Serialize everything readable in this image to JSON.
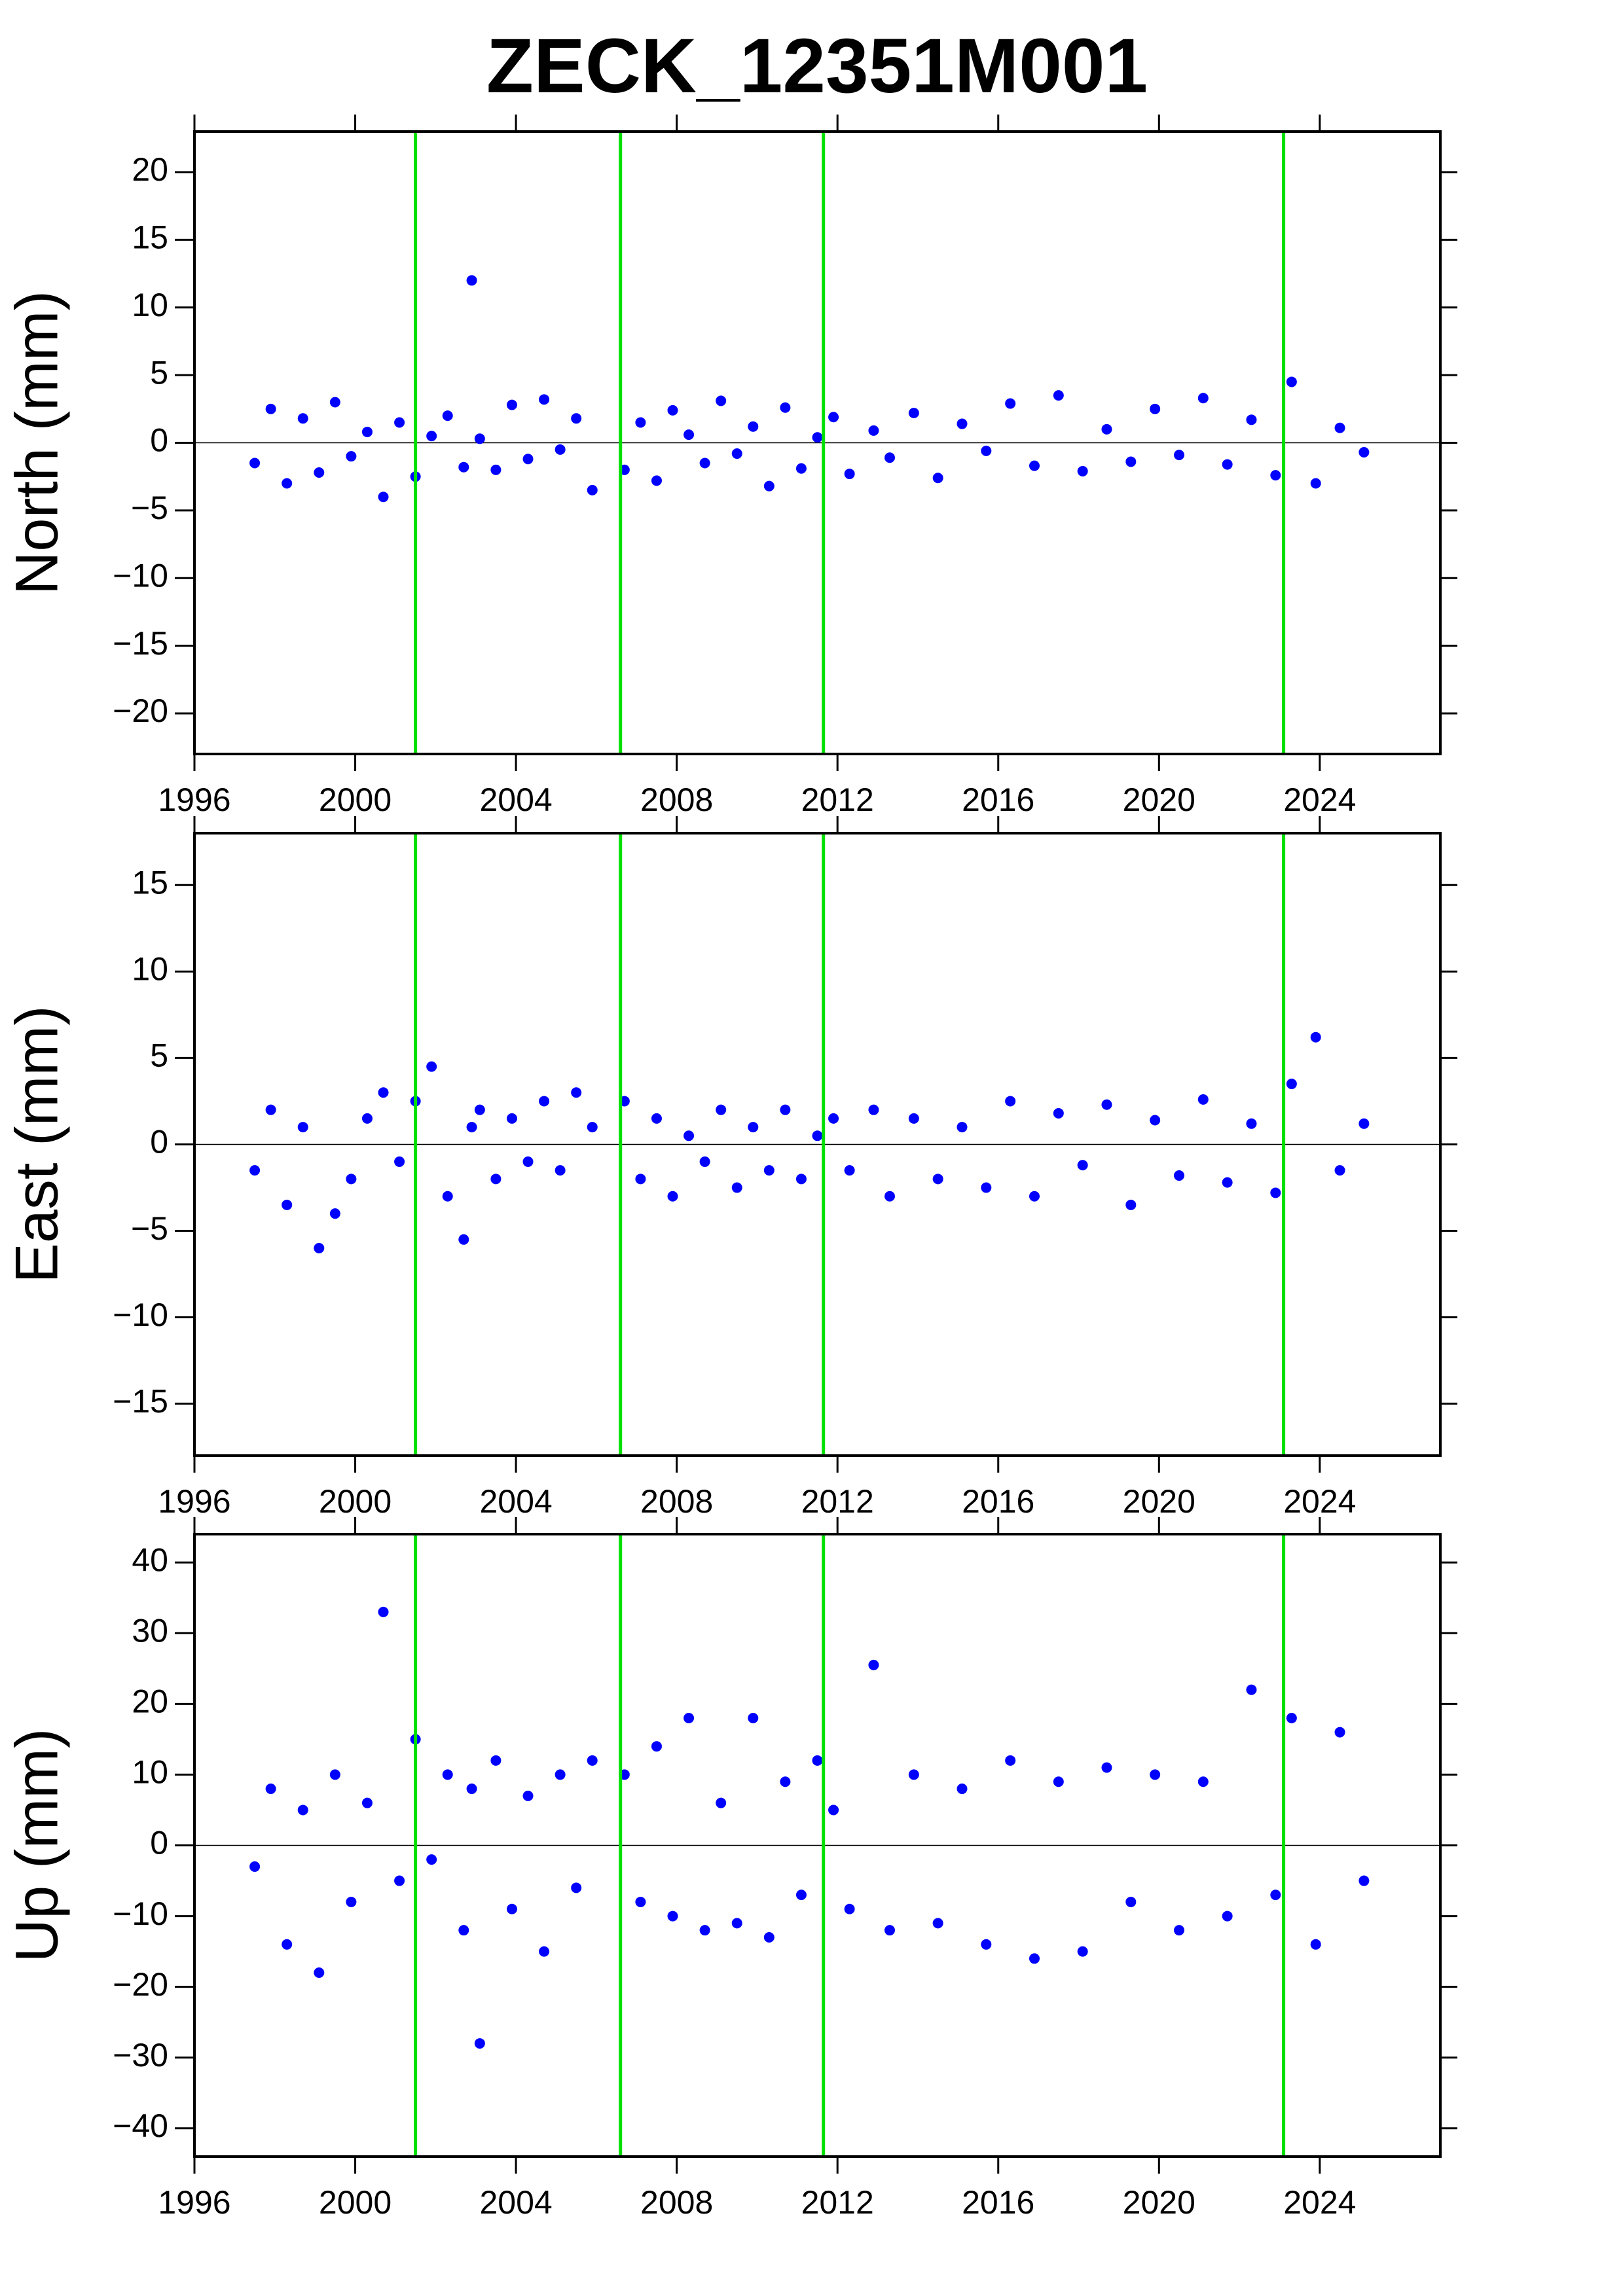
{
  "title": "ZECK_12351M001",
  "chart_data": [
    {
      "type": "scatter",
      "ylabel": "North (mm)",
      "xlim": [
        1996,
        2027
      ],
      "ylim": [
        -23,
        23
      ],
      "xticks": [
        1996,
        2000,
        2004,
        2008,
        2012,
        2016,
        2020,
        2024
      ],
      "yticks": [
        {
          "value": -20,
          "label": "−20"
        },
        {
          "value": -15,
          "label": "−15"
        },
        {
          "value": -10,
          "label": "−10"
        },
        {
          "value": -5,
          "label": "−5"
        },
        0,
        5,
        10,
        15,
        20
      ],
      "vlines": [
        2001.5,
        2006.6,
        2011.65,
        2023.1
      ],
      "vline_color": "#00e000",
      "zero_line": true,
      "color": "#0000ff",
      "x": [
        1997.5,
        1997.9,
        1998.3,
        1998.7,
        1999.1,
        1999.5,
        1999.9,
        2000.3,
        2000.7,
        2001.1,
        2001.5,
        2001.9,
        2002.3,
        2002.7,
        2002.9,
        2003.1,
        2003.5,
        2003.9,
        2004.3,
        2004.7,
        2005.1,
        2005.5,
        2005.9,
        2006.7,
        2007.1,
        2007.5,
        2007.9,
        2008.3,
        2008.7,
        2009.1,
        2009.5,
        2009.9,
        2010.3,
        2010.7,
        2011.1,
        2011.5,
        2011.9,
        2012.3,
        2012.9,
        2013.3,
        2013.9,
        2014.5,
        2015.1,
        2015.7,
        2016.3,
        2016.9,
        2017.5,
        2018.1,
        2018.7,
        2019.3,
        2019.9,
        2020.5,
        2021.1,
        2021.7,
        2022.3,
        2022.9,
        2023.3,
        2023.9,
        2024.5,
        2025.1
      ],
      "values": [
        -1.5,
        2.5,
        -3,
        1.8,
        -2.2,
        3,
        -1,
        0.8,
        -4,
        1.5,
        -2.5,
        0.5,
        2,
        -1.8,
        12,
        0.3,
        -2,
        2.8,
        -1.2,
        3.2,
        -0.5,
        1.8,
        -3.5,
        -2,
        1.5,
        -2.8,
        2.4,
        0.6,
        -1.5,
        3.1,
        -0.8,
        1.2,
        -3.2,
        2.6,
        -1.9,
        0.4,
        1.9,
        -2.3,
        0.9,
        -1.1,
        2.2,
        -2.6,
        1.4,
        -0.6,
        2.9,
        -1.7,
        3.5,
        -2.1,
        1,
        -1.4,
        2.5,
        -0.9,
        3.3,
        -1.6,
        1.7,
        -2.4,
        4.5,
        -3,
        1.1,
        -0.7
      ]
    },
    {
      "type": "scatter",
      "ylabel": "East (mm)",
      "xlim": [
        1996,
        2027
      ],
      "ylim": [
        -18,
        18
      ],
      "xticks": [
        1996,
        2000,
        2004,
        2008,
        2012,
        2016,
        2020,
        2024
      ],
      "yticks": [
        {
          "value": -15,
          "label": "−15"
        },
        {
          "value": -10,
          "label": "−10"
        },
        {
          "value": -5,
          "label": "−5"
        },
        0,
        5,
        10,
        15
      ],
      "vlines": [
        2001.5,
        2006.6,
        2011.65,
        2023.1
      ],
      "vline_color": "#00e000",
      "zero_line": true,
      "color": "#0000ff",
      "x": [
        1997.5,
        1997.9,
        1998.3,
        1998.7,
        1999.1,
        1999.5,
        1999.9,
        2000.3,
        2000.7,
        2001.1,
        2001.5,
        2001.9,
        2002.3,
        2002.7,
        2002.9,
        2003.1,
        2003.5,
        2003.9,
        2004.3,
        2004.7,
        2005.1,
        2005.5,
        2005.9,
        2006.7,
        2007.1,
        2007.5,
        2007.9,
        2008.3,
        2008.7,
        2009.1,
        2009.5,
        2009.9,
        2010.3,
        2010.7,
        2011.1,
        2011.5,
        2011.9,
        2012.3,
        2012.9,
        2013.3,
        2013.9,
        2014.5,
        2015.1,
        2015.7,
        2016.3,
        2016.9,
        2017.5,
        2018.1,
        2018.7,
        2019.3,
        2019.9,
        2020.5,
        2021.1,
        2021.7,
        2022.3,
        2022.9,
        2023.3,
        2023.9,
        2024.5,
        2025.1
      ],
      "values": [
        -1.5,
        2,
        -3.5,
        1,
        -6,
        -4,
        -2,
        1.5,
        3,
        -1,
        2.5,
        4.5,
        -3,
        -5.5,
        1,
        2,
        -2,
        1.5,
        -1,
        2.5,
        -1.5,
        3,
        1,
        2.5,
        -2,
        1.5,
        -3,
        0.5,
        -1,
        2,
        -2.5,
        1,
        -1.5,
        2,
        -2,
        0.5,
        1.5,
        -1.5,
        2,
        -3,
        1.5,
        -2,
        1,
        -2.5,
        2.5,
        -3,
        1.8,
        -1.2,
        2.3,
        -3.5,
        1.4,
        -1.8,
        2.6,
        -2.2,
        1.2,
        -2.8,
        3.5,
        6.2,
        -1.5,
        1.2
      ]
    },
    {
      "type": "scatter",
      "ylabel": "Up (mm)",
      "xlim": [
        1996,
        2027
      ],
      "ylim": [
        -44,
        44
      ],
      "xticks": [
        1996,
        2000,
        2004,
        2008,
        2012,
        2016,
        2020,
        2024
      ],
      "yticks": [
        {
          "value": -40,
          "label": "−40"
        },
        {
          "value": -30,
          "label": "−30"
        },
        {
          "value": -20,
          "label": "−20"
        },
        {
          "value": -10,
          "label": "−10"
        },
        0,
        10,
        20,
        30,
        40
      ],
      "vlines": [
        2001.5,
        2006.6,
        2011.65,
        2023.1
      ],
      "vline_color": "#00e000",
      "zero_line": true,
      "color": "#0000ff",
      "x": [
        1997.5,
        1997.9,
        1998.3,
        1998.7,
        1999.1,
        1999.5,
        1999.9,
        2000.3,
        2000.7,
        2001.1,
        2001.5,
        2001.9,
        2002.3,
        2002.7,
        2002.9,
        2003.1,
        2003.5,
        2003.9,
        2004.3,
        2004.7,
        2005.1,
        2005.5,
        2005.9,
        2006.7,
        2007.1,
        2007.5,
        2007.9,
        2008.3,
        2008.7,
        2009.1,
        2009.5,
        2009.9,
        2010.3,
        2010.7,
        2011.1,
        2011.5,
        2011.9,
        2012.3,
        2012.9,
        2013.3,
        2013.9,
        2014.5,
        2015.1,
        2015.7,
        2016.3,
        2016.9,
        2017.5,
        2018.1,
        2018.7,
        2019.3,
        2019.9,
        2020.5,
        2021.1,
        2021.7,
        2022.3,
        2022.9,
        2023.3,
        2023.9,
        2024.5,
        2025.1
      ],
      "values": [
        -3,
        8,
        -14,
        5,
        -18,
        10,
        -8,
        6,
        33,
        -5,
        15,
        -2,
        10,
        -12,
        8,
        -28,
        12,
        -9,
        7,
        -15,
        10,
        -6,
        12,
        10,
        -8,
        14,
        -10,
        18,
        -12,
        6,
        -11,
        18,
        -13,
        9,
        -7,
        12,
        5,
        -9,
        25.5,
        -12,
        10,
        -11,
        8,
        -14,
        12,
        -16,
        9,
        -15,
        11,
        -8,
        10,
        -12,
        9,
        -10,
        22,
        -7,
        18,
        -14,
        16,
        -5
      ]
    }
  ]
}
